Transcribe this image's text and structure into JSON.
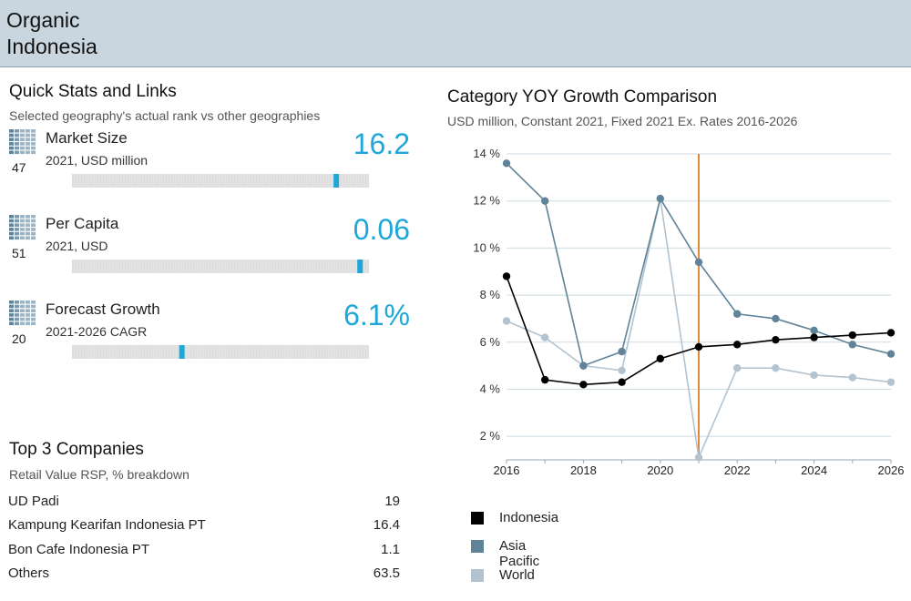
{
  "header": {
    "title_line1": "Organic",
    "title_line2": "Indonesia"
  },
  "quick_stats": {
    "title": "Quick Stats and Links",
    "subtitle": "Selected geography's actual rank vs other geographies",
    "items": [
      {
        "label": "Market Size",
        "unit": "2021, USD million",
        "value": "16.2",
        "rank": "47",
        "marker_fraction": 0.89
      },
      {
        "label": "Per Capita",
        "unit": "2021, USD",
        "value": "0.06",
        "rank": "51",
        "marker_fraction": 0.97
      },
      {
        "label": "Forecast Growth",
        "unit": "2021-2026 CAGR",
        "value": "6.1%",
        "rank": "20",
        "marker_fraction": 0.37
      }
    ]
  },
  "companies": {
    "title": "Top 3 Companies",
    "subtitle": "Retail Value RSP, % breakdown",
    "rows": [
      {
        "name": "UD Padi",
        "value": "19"
      },
      {
        "name": "Kampung Kearifan Indonesia PT",
        "value": "16.4"
      },
      {
        "name": "Bon Cafe Indonesia PT",
        "value": "1.1"
      },
      {
        "name": "Others",
        "value": "63.5"
      }
    ]
  },
  "chart_data": {
    "type": "line",
    "title": "Category YOY Growth Comparison",
    "subtitle": "USD million, Constant 2021, Fixed 2021 Ex. Rates 2016-2026",
    "x": [
      2016,
      2017,
      2018,
      2019,
      2020,
      2021,
      2022,
      2023,
      2024,
      2025,
      2026
    ],
    "x_ticks": [
      2016,
      2018,
      2020,
      2022,
      2024,
      2026
    ],
    "x_tick_labels": [
      "2016",
      "2018",
      "2020",
      "2022",
      "2024",
      "2026"
    ],
    "y_ticks": [
      2,
      4,
      6,
      8,
      10,
      12,
      14
    ],
    "y_tick_labels": [
      "2 %",
      "4 %",
      "6 %",
      "8 %",
      "10 %",
      "12 %",
      "14 %"
    ],
    "ylim": [
      1,
      14
    ],
    "xlim": [
      2016,
      2026
    ],
    "marker_year": 2021,
    "grid": "horizontal",
    "legend_position": "bottom-left",
    "series": [
      {
        "name": "Indonesia",
        "color": "#000000",
        "values": [
          8.8,
          4.4,
          4.2,
          4.3,
          5.3,
          5.8,
          5.9,
          6.1,
          6.2,
          6.3,
          6.4
        ]
      },
      {
        "name": "Asia Pacific",
        "color": "#5f8398",
        "values": [
          13.6,
          12.0,
          5.0,
          5.6,
          12.1,
          9.4,
          7.2,
          7.0,
          6.5,
          5.9,
          5.5
        ]
      },
      {
        "name": "World",
        "color": "#b3c3cf",
        "values": [
          6.9,
          6.2,
          5.0,
          4.8,
          12.1,
          1.1,
          4.9,
          4.9,
          4.6,
          4.5,
          4.3
        ]
      }
    ]
  },
  "colors": {
    "accent": "#1fa7d9",
    "header_bg": "#c9d6df",
    "marker_line": "#e08a3c",
    "bar_track": "#dddddd"
  },
  "icons": {
    "rank_grid": "grid-icon"
  }
}
